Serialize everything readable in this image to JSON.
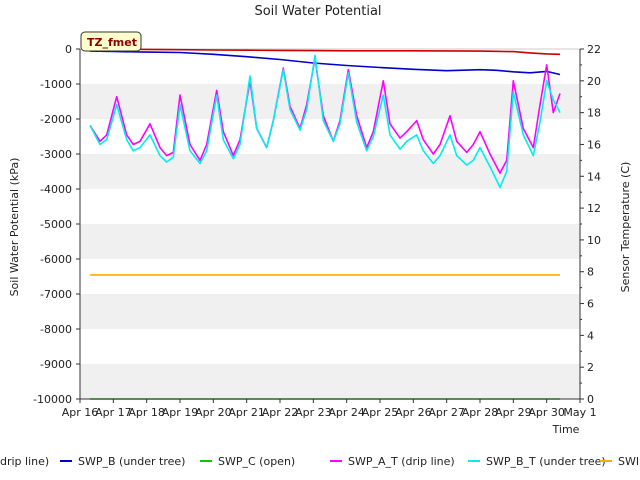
{
  "chart_data": {
    "type": "line",
    "title": "Soil Water Potential",
    "xlabel": "Time",
    "ylabel": "Soil Water Potential (kPa)",
    "y2label": "Sensor Temperature (C)",
    "ylim": [
      -10000,
      0
    ],
    "y2lim": [
      0,
      22
    ],
    "x_tick_labels": [
      "Apr 16",
      "Apr 17",
      "Apr 18",
      "Apr 19",
      "Apr 20",
      "Apr 21",
      "Apr 22",
      "Apr 23",
      "Apr 24",
      "Apr 25",
      "Apr 26",
      "Apr 27",
      "Apr 28",
      "Apr 29",
      "Apr 30",
      "May 1"
    ],
    "y_tick_labels": [
      "0",
      "-1000",
      "-2000",
      "-3000",
      "-4000",
      "-5000",
      "-6000",
      "-7000",
      "-8000",
      "-9000",
      "-10000"
    ],
    "y2_tick_labels": [
      "0",
      "2",
      "4",
      "6",
      "8",
      "10",
      "12",
      "14",
      "16",
      "18",
      "20",
      "22"
    ],
    "grid": "horizontal bands",
    "station_label": "TZ_fmet",
    "legend_placement": "bottom",
    "series": [
      {
        "name": "SWP_A (drip line)",
        "legend_text": "drip line)",
        "color": "#cc0000",
        "axis": "left",
        "x": [
          16.3,
          17.0,
          18.0,
          19.0,
          20.0,
          21.0,
          22.0,
          23.0,
          24.0,
          25.0,
          26.0,
          27.0,
          28.0,
          29.0,
          29.5,
          30.0,
          30.4
        ],
        "y": [
          0,
          0,
          -10,
          -20,
          -30,
          -35,
          -40,
          -45,
          -50,
          -50,
          -50,
          -55,
          -60,
          -75,
          -110,
          -140,
          -150
        ]
      },
      {
        "name": "SWP_B (under tree)",
        "color": "#0000cc",
        "axis": "left",
        "x": [
          16.3,
          17.0,
          18.0,
          19.0,
          20.0,
          21.0,
          22.0,
          23.0,
          24.0,
          25.0,
          26.0,
          27.0,
          28.0,
          28.5,
          29.0,
          29.5,
          30.0,
          30.4
        ],
        "y": [
          -60,
          -70,
          -90,
          -100,
          -150,
          -220,
          -300,
          -400,
          -470,
          -530,
          -580,
          -620,
          -590,
          -610,
          -650,
          -680,
          -640,
          -730
        ]
      },
      {
        "name": "SWP_C (open)",
        "color": "#00cc00",
        "axis": "left",
        "x": [
          16.3,
          30.4
        ],
        "y": [
          -10000,
          -10000
        ]
      },
      {
        "name": "SWP_A_T (drip line)",
        "color": "#ff00ff",
        "axis": "right",
        "x": [
          16.3,
          16.6,
          16.8,
          17.1,
          17.4,
          17.6,
          17.8,
          18.1,
          18.4,
          18.6,
          18.8,
          19.0,
          19.3,
          19.6,
          19.8,
          20.1,
          20.3,
          20.6,
          20.8,
          21.1,
          21.3,
          21.6,
          21.8,
          22.1,
          22.3,
          22.6,
          22.8,
          23.05,
          23.3,
          23.6,
          23.8,
          24.05,
          24.3,
          24.6,
          24.8,
          25.1,
          25.3,
          25.6,
          25.8,
          26.1,
          26.3,
          26.6,
          26.8,
          27.1,
          27.3,
          27.6,
          27.8,
          28.0,
          28.3,
          28.6,
          28.8,
          29.0,
          29.3,
          29.6,
          29.8,
          30.0,
          30.2,
          30.4
        ],
        "y": [
          17.2,
          16.2,
          16.6,
          19.0,
          16.6,
          16.0,
          16.2,
          17.3,
          15.8,
          15.3,
          15.5,
          19.1,
          16.0,
          15.0,
          16.0,
          19.4,
          16.8,
          15.3,
          16.3,
          20.0,
          17.0,
          15.8,
          17.5,
          20.8,
          18.4,
          17.0,
          18.5,
          21.4,
          17.8,
          16.2,
          17.5,
          20.7,
          17.8,
          15.8,
          16.8,
          20.0,
          17.3,
          16.4,
          16.8,
          17.5,
          16.3,
          15.4,
          16.0,
          17.8,
          16.2,
          15.5,
          16.0,
          16.8,
          15.4,
          14.2,
          15.0,
          20.0,
          17.0,
          15.8,
          18.5,
          21.0,
          18.0,
          19.2
        ]
      },
      {
        "name": "SWP_B_T (under tree)",
        "color": "#00eeee",
        "axis": "right",
        "x": [
          16.3,
          16.6,
          16.8,
          17.1,
          17.4,
          17.6,
          17.8,
          18.1,
          18.4,
          18.6,
          18.8,
          19.0,
          19.3,
          19.6,
          19.8,
          20.1,
          20.3,
          20.6,
          20.8,
          21.1,
          21.3,
          21.6,
          21.8,
          22.1,
          22.3,
          22.6,
          22.8,
          23.05,
          23.3,
          23.6,
          23.8,
          24.05,
          24.3,
          24.6,
          24.8,
          25.1,
          25.3,
          25.6,
          25.8,
          26.1,
          26.3,
          26.6,
          26.8,
          27.1,
          27.3,
          27.6,
          27.8,
          28.0,
          28.3,
          28.6,
          28.8,
          29.0,
          29.3,
          29.6,
          29.8,
          30.0,
          30.2,
          30.4
        ],
        "y": [
          17.2,
          16.0,
          16.3,
          18.5,
          16.3,
          15.6,
          15.8,
          16.6,
          15.3,
          14.9,
          15.2,
          18.5,
          15.6,
          14.8,
          15.6,
          19.1,
          16.3,
          15.1,
          16.0,
          20.3,
          17.0,
          15.8,
          17.5,
          20.7,
          18.2,
          16.9,
          18.2,
          21.6,
          17.5,
          16.2,
          17.3,
          20.5,
          17.4,
          15.6,
          16.5,
          19.1,
          16.6,
          15.7,
          16.2,
          16.6,
          15.6,
          14.8,
          15.3,
          16.6,
          15.3,
          14.7,
          15.0,
          15.8,
          14.6,
          13.3,
          14.3,
          19.3,
          16.6,
          15.3,
          17.4,
          20.0,
          18.8,
          18.0
        ]
      },
      {
        "name": "SWP_C_T (open)",
        "legend_text": "SWI",
        "color": "#ffaa00",
        "axis": "right",
        "x": [
          16.3,
          30.4
        ],
        "y": [
          7.8,
          7.8
        ]
      }
    ]
  }
}
